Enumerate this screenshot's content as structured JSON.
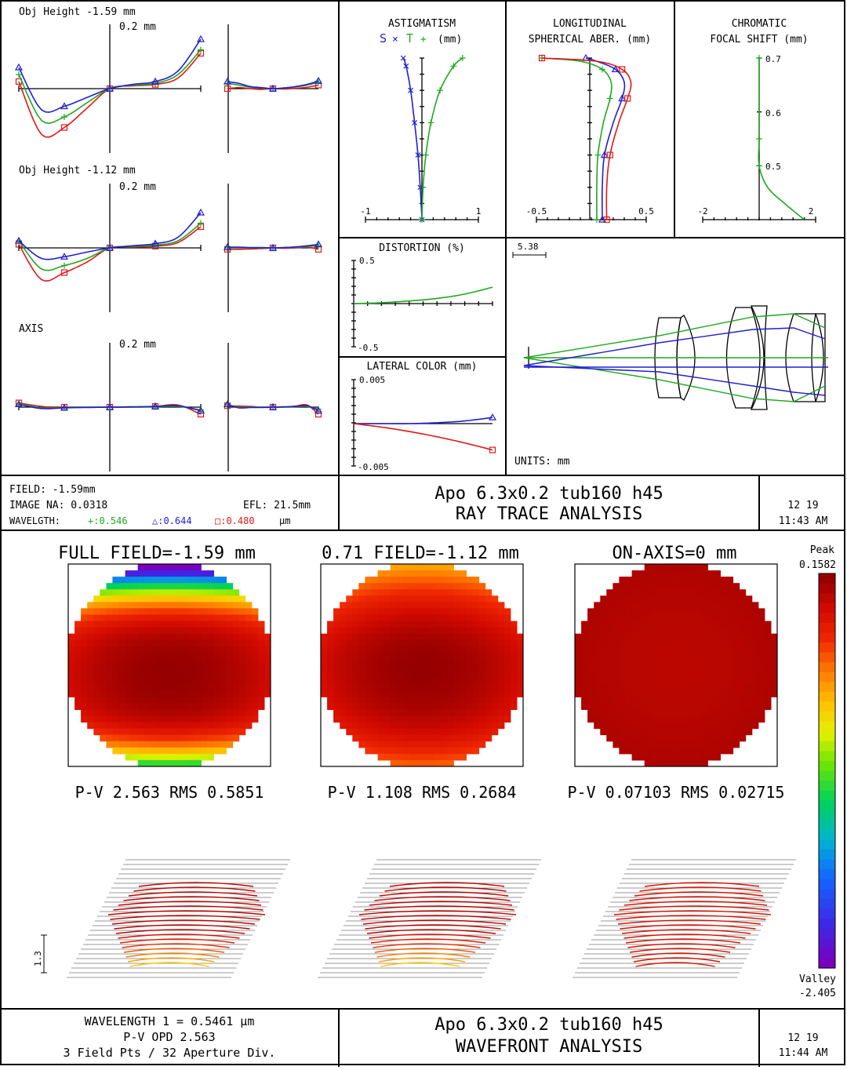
{
  "ray_trace": {
    "ray_fans": {
      "scale_label": "0.2 mm",
      "fields": [
        {
          "label": "Obj Height -1.59 mm"
        },
        {
          "label": "Obj Height -1.12 mm"
        },
        {
          "label": "AXIS"
        }
      ]
    },
    "astigmatism": {
      "title": "ASTIGMATISM",
      "legend_s": "S",
      "legend_t": "T",
      "unit": "(mm)",
      "xmin_label": "-1",
      "xmax_label": "1"
    },
    "longitudinal": {
      "title1": "LONGITUDINAL",
      "title2": "SPHERICAL ABER. (mm)",
      "xmin_label": "-0.5",
      "xmax_label": "0.5"
    },
    "chromatic_shift": {
      "title1": "CHROMATIC",
      "title2": "FOCAL SHIFT (mm)",
      "xmin_label": "-2",
      "xmax_label": "2",
      "tick_07": "0.7",
      "tick_06": "0.6",
      "tick_05": "0.5"
    },
    "distortion": {
      "title": "DISTORTION (%)",
      "ymax_label": "0.5",
      "ymin_label": "-0.5"
    },
    "lateral_color": {
      "title": "LATERAL COLOR (mm)",
      "ymax_label": "0.005",
      "ymin_label": "-0.005"
    },
    "layout": {
      "scale_label": "5.38",
      "units": "UNITS: mm"
    },
    "info": {
      "field": "FIELD: -1.59mm",
      "image_na": "IMAGE NA: 0.0318",
      "efl": "EFL: 21.5mm",
      "wavelength_prefix": "WAVELGTH:",
      "wl_green": "+:0.546",
      "wl_blue": "△:0.644",
      "wl_red": "□:0.480",
      "wl_unit": "µm"
    },
    "title_line1": "Apo 6.3x0.2 tub160 h45",
    "title_line2": "RAY TRACE ANALYSIS",
    "date": "12 19",
    "time": "11:43 AM"
  },
  "wavefront": {
    "maps": [
      {
        "title": "FULL FIELD=-1.59 mm",
        "pv_rms": "P-V 2.563 RMS 0.5851"
      },
      {
        "title": "0.71 FIELD=-1.12 mm",
        "pv_rms": "P-V 1.108 RMS 0.2684"
      },
      {
        "title": "ON-AXIS=0 mm",
        "pv_rms": "P-V 0.07103 RMS 0.02715"
      }
    ],
    "colorbar": {
      "peak_label": "Peak",
      "peak_value": "0.1582",
      "valley_label": "Valley",
      "valley_value": "-2.405"
    },
    "scale_label": "1.3",
    "info": {
      "line1": "WAVELENGTH 1 = 0.5461 µm",
      "line2": "P-V OPD 2.563",
      "line3": "3 Field Pts / 32 Aperture Div."
    },
    "title_line1": "Apo 6.3x0.2 tub160 h45",
    "title_line2": "WAVEFRONT ANALYSIS",
    "date": "12 19",
    "time": "11:44 AM"
  },
  "colors": {
    "green": "#1fa81f",
    "blue": "#1f1fd0",
    "red": "#e01818",
    "line": "#000000"
  },
  "chart_data": [
    {
      "type": "line",
      "name": "ray_fans",
      "x": [
        -1,
        -0.75,
        -0.5,
        -0.25,
        0,
        0.25,
        0.5,
        0.75,
        1
      ],
      "fields": [
        {
          "tan": {
            "blue": [
              0.06,
              -0.06,
              -0.05,
              -0.025,
              0,
              0.012,
              0.02,
              0.05,
              0.14
            ],
            "green": [
              0.04,
              -0.09,
              -0.08,
              -0.04,
              0,
              0.01,
              0.015,
              0.04,
              0.11
            ],
            "red": [
              0.02,
              -0.13,
              -0.11,
              -0.055,
              0,
              0.008,
              0.012,
              0.03,
              0.1
            ]
          },
          "sag": {
            "blue": [
              0.02,
              0.015,
              0.006,
              0.003,
              0,
              0.002,
              0.006,
              0.012,
              0.022
            ],
            "green": [
              0.015,
              0.01,
              0.004,
              0.002,
              0,
              0.002,
              0.005,
              0.01,
              0.018
            ],
            "red": [
              0.0,
              0.003,
              0.0,
              -0.002,
              0,
              -0.001,
              0.001,
              0.004,
              0.01
            ]
          }
        },
        {
          "tan": {
            "blue": [
              0.02,
              -0.03,
              -0.025,
              -0.012,
              0,
              0.006,
              0.012,
              0.03,
              0.1
            ],
            "green": [
              0.02,
              -0.06,
              -0.05,
              -0.03,
              0,
              0.004,
              0.008,
              0.02,
              0.07
            ],
            "red": [
              0.01,
              -0.09,
              -0.07,
              -0.04,
              0,
              0.002,
              0.005,
              0.015,
              0.06
            ]
          },
          "sag": {
            "blue": [
              0.002,
              0.002,
              0.001,
              0.001,
              0,
              0.001,
              0.003,
              0.006,
              0.01
            ],
            "green": [
              0.0,
              0.001,
              0.0,
              0.0,
              0,
              0.001,
              0.002,
              0.004,
              0.006
            ],
            "red": [
              -0.004,
              -0.004,
              -0.003,
              -0.002,
              0,
              -0.001,
              0.0,
              0.002,
              -0.004
            ]
          }
        },
        {
          "tan": {
            "blue": [
              0.008,
              -0.004,
              -0.002,
              -0.001,
              0,
              0.001,
              0.002,
              0.004,
              -0.01
            ],
            "green": [
              0.01,
              -0.002,
              -0.001,
              0,
              0,
              0,
              0.001,
              0.002,
              -0.008
            ],
            "red": [
              0.012,
              0.002,
              0.0,
              0.0,
              0,
              0.0,
              0.002,
              0.006,
              -0.02
            ]
          },
          "sag": {
            "blue": [
              0.008,
              -0.002,
              -0.001,
              -0.001,
              0,
              0.001,
              0.002,
              0.004,
              -0.01
            ],
            "green": [
              0.006,
              0.0,
              0.0,
              0.0,
              0,
              0.0,
              0.001,
              0.002,
              -0.006
            ],
            "red": [
              0.004,
              0.003,
              0.002,
              0.0,
              0,
              0.0,
              0.003,
              0.006,
              -0.02
            ]
          }
        }
      ]
    },
    {
      "type": "line",
      "name": "astigmatism",
      "xlim": [
        -1,
        1
      ],
      "ylim": [
        0,
        1
      ],
      "series": [
        {
          "name": "S",
          "x": [
            0,
            -0.03,
            -0.07,
            -0.13,
            -0.2,
            -0.28,
            -0.33
          ],
          "y": [
            0,
            0.2,
            0.4,
            0.6,
            0.8,
            0.95,
            1.0
          ]
        },
        {
          "name": "T",
          "x": [
            0,
            0.02,
            0.07,
            0.16,
            0.32,
            0.56,
            0.72
          ],
          "y": [
            0,
            0.2,
            0.4,
            0.6,
            0.8,
            0.95,
            1.0
          ]
        }
      ]
    },
    {
      "type": "line",
      "name": "longitudinal_spherical",
      "xlim": [
        -0.5,
        0.5
      ],
      "ylim": [
        0,
        1
      ],
      "series": [
        {
          "color": "blue",
          "x": [
            0.1,
            0.1,
            0.12,
            0.2,
            0.28,
            0.3,
            0.22,
            0.05,
            -0.05
          ],
          "y": [
            0,
            0.2,
            0.4,
            0.6,
            0.75,
            0.85,
            0.93,
            0.98,
            1.0
          ]
        },
        {
          "color": "green",
          "x": [
            0.05,
            0.05,
            0.06,
            0.11,
            0.17,
            0.18,
            0.1,
            -0.1,
            -0.45
          ],
          "y": [
            0,
            0.2,
            0.4,
            0.6,
            0.75,
            0.85,
            0.93,
            0.98,
            1.0
          ]
        },
        {
          "color": "red",
          "x": [
            0.14,
            0.14,
            0.17,
            0.25,
            0.33,
            0.36,
            0.28,
            0.05,
            -0.45
          ],
          "y": [
            0,
            0.2,
            0.4,
            0.6,
            0.75,
            0.85,
            0.93,
            0.98,
            1.0
          ]
        }
      ]
    },
    {
      "type": "line",
      "name": "chromatic_focal_shift",
      "xlim": [
        -2,
        2
      ],
      "ylim": [
        0.4,
        0.7
      ],
      "series": [
        {
          "color": "green",
          "x": [
            0,
            0,
            0,
            0,
            0.3,
            0.9,
            1.6
          ],
          "y": [
            0.7,
            0.62,
            0.55,
            0.5,
            0.46,
            0.43,
            0.4
          ]
        }
      ]
    },
    {
      "type": "line",
      "name": "distortion",
      "xlim": [
        0,
        1
      ],
      "ylim": [
        -0.5,
        0.5
      ],
      "series": [
        {
          "color": "green",
          "x": [
            0,
            0.2,
            0.4,
            0.6,
            0.8,
            1.0
          ],
          "y": [
            0,
            0.01,
            0.03,
            0.06,
            0.11,
            0.19
          ]
        }
      ]
    },
    {
      "type": "line",
      "name": "lateral_color",
      "xlim": [
        0,
        1
      ],
      "ylim": [
        -0.005,
        0.005
      ],
      "series": [
        {
          "color": "blue",
          "x": [
            0,
            0.2,
            0.4,
            0.6,
            0.8,
            1.0
          ],
          "y": [
            0,
            0,
            0,
            0.0001,
            0.0003,
            0.0007
          ]
        },
        {
          "color": "red",
          "x": [
            0,
            0.2,
            0.4,
            0.6,
            0.8,
            1.0
          ],
          "y": [
            0,
            -0.0004,
            -0.0009,
            -0.0015,
            -0.0022,
            -0.003
          ]
        }
      ]
    },
    {
      "type": "heatmap",
      "name": "wavefront_maps",
      "zlim": [
        -2.405,
        0.1582
      ],
      "maps": [
        {
          "defocus": 1.0,
          "astig": 1.6,
          "peak_y": 0.1,
          "floor": -2.405
        },
        {
          "defocus": 0.9,
          "astig": 0.4,
          "peak_y": 0.0,
          "floor": -1.0
        },
        {
          "defocus": 0.06,
          "astig": 0.0,
          "peak_y": 0.0,
          "floor": 0.08
        }
      ]
    }
  ]
}
